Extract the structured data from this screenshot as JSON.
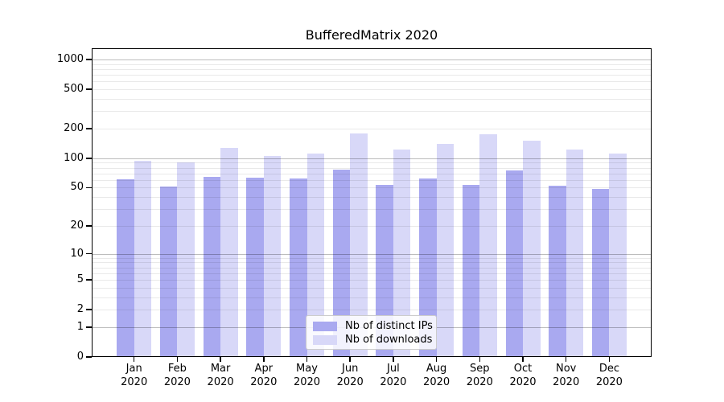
{
  "chart_data": {
    "type": "bar",
    "title": "BufferedMatrix 2020",
    "categories": [
      "Jan",
      "Feb",
      "Mar",
      "Apr",
      "May",
      "Jun",
      "Jul",
      "Aug",
      "Sep",
      "Oct",
      "Nov",
      "Dec"
    ],
    "category_year": "2020",
    "series": [
      {
        "name": "Nb of distinct IPs",
        "color": "#a9a9f0",
        "values": [
          61,
          51,
          65,
          63,
          62,
          76,
          53,
          62,
          53,
          75,
          52,
          49
        ]
      },
      {
        "name": "Nb of downloads",
        "color": "#d8d8f8",
        "values": [
          94,
          91,
          128,
          105,
          111,
          180,
          122,
          140,
          176,
          152,
          122,
          112
        ]
      }
    ],
    "yscale": "log10(1+x)",
    "ylim": [
      0,
      1300
    ],
    "yticks": [
      0,
      1,
      2,
      5,
      10,
      20,
      50,
      100,
      200,
      500,
      1000
    ],
    "major_gridlines": [
      1,
      10,
      100,
      1000
    ],
    "minor_gridlines": [
      2,
      3,
      4,
      5,
      6,
      7,
      8,
      9,
      20,
      30,
      40,
      50,
      60,
      70,
      80,
      90,
      200,
      300,
      400,
      500,
      600,
      700,
      800,
      900
    ],
    "grid": "on",
    "legend_position": "lower center",
    "xlabel": "",
    "ylabel": ""
  }
}
